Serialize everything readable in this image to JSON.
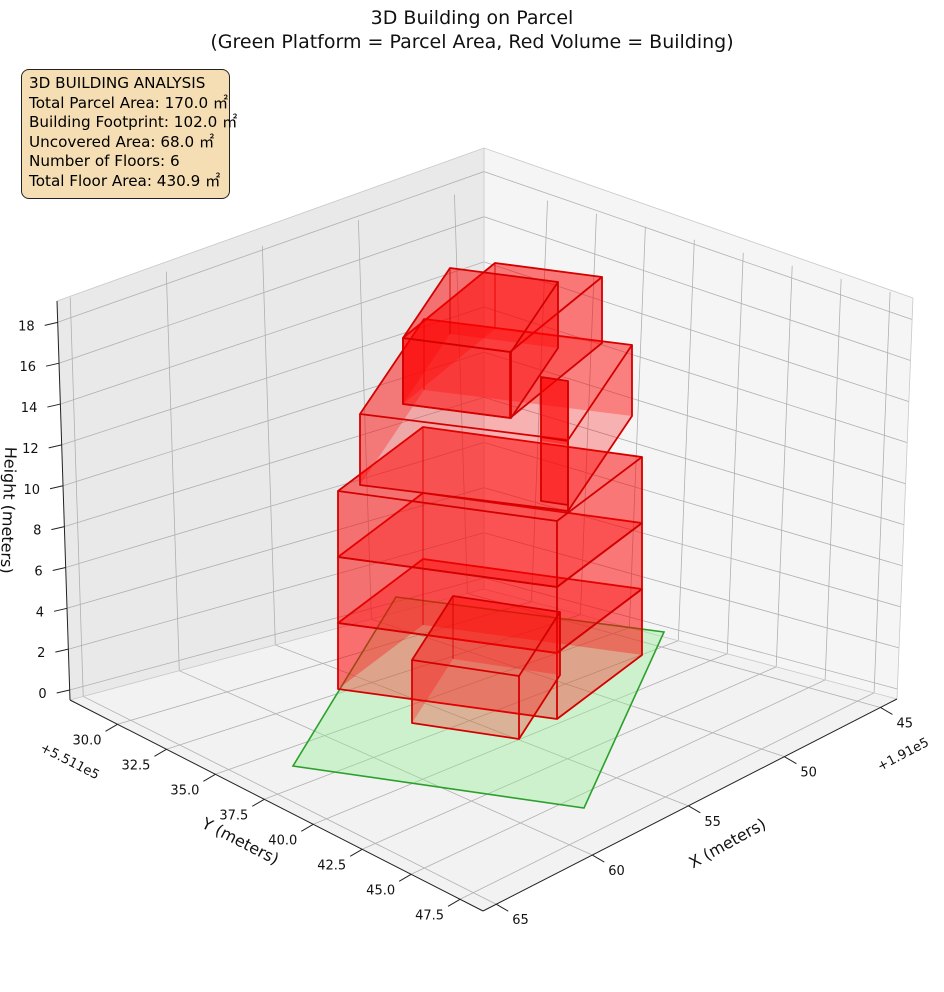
{
  "title_line1": "3D Building on Parcel",
  "title_line2": "(Green Platform = Parcel Area, Red Volume = Building)",
  "info_box": {
    "heading": "3D BUILDING ANALYSIS",
    "lines": [
      "Total Parcel Area: 170.0 ㎡",
      "Building Footprint: 102.0 ㎡",
      "Uncovered Area: 68.0 ㎡",
      "Number of Floors: 6",
      "Total Floor Area: 430.9 ㎡"
    ]
  },
  "chart_data": {
    "type": "3d-volume",
    "title": "3D Building on Parcel\n(Green Platform = Parcel Area, Red Volume = Building)",
    "xlabel": "X (meters)",
    "ylabel": "Y (meters)",
    "zlabel": "Height (meters)",
    "x_offset_label": "+1.91e5",
    "y_offset_label": "+5.511e5",
    "x_ticks": [
      "45",
      "50",
      "55",
      "60",
      "65"
    ],
    "y_ticks": [
      "30.0",
      "32.5",
      "35.0",
      "37.5",
      "40.0",
      "42.5",
      "45.0",
      "47.5"
    ],
    "z_ticks": [
      "0",
      "2",
      "4",
      "6",
      "8",
      "10",
      "12",
      "14",
      "16",
      "18"
    ],
    "zlim": [
      0,
      18
    ],
    "grid": true,
    "parcel_color": "#90ee90",
    "parcel_edge_color": "#2ca02c",
    "building_color": "#ff0000",
    "parcel_area_m2": 170.0,
    "building_footprint_m2": 102.0,
    "uncovered_area_m2": 68.0,
    "floors": 6,
    "total_floor_area_m2": 430.9
  }
}
